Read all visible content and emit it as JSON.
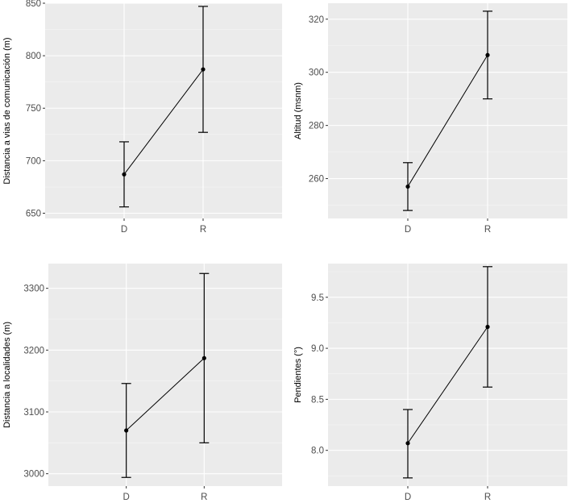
{
  "chart_data": [
    {
      "type": "line",
      "ylabel": "Distancia a vias de comunicación (m)",
      "xlabel": "",
      "categories": [
        "D",
        "R"
      ],
      "values": [
        687,
        787
      ],
      "error_low": [
        656,
        727
      ],
      "error_high": [
        718,
        847
      ],
      "ylim": [
        645,
        850
      ],
      "yticks": [
        650,
        700,
        750,
        800,
        850
      ]
    },
    {
      "type": "line",
      "ylabel": "Altitud (msnm)",
      "xlabel": "",
      "categories": [
        "D",
        "R"
      ],
      "values": [
        257,
        306.5
      ],
      "error_low": [
        248,
        290
      ],
      "error_high": [
        266,
        323
      ],
      "ylim": [
        245,
        326
      ],
      "yticks": [
        260,
        280,
        300,
        320
      ]
    },
    {
      "type": "line",
      "ylabel": "Distancia a localidades (m)",
      "xlabel": "",
      "categories": [
        "D",
        "R"
      ],
      "values": [
        3070,
        3187
      ],
      "error_low": [
        2994,
        3050
      ],
      "error_high": [
        3146,
        3324
      ],
      "ylim": [
        2980,
        3340
      ],
      "yticks": [
        3000,
        3100,
        3200,
        3300
      ]
    },
    {
      "type": "line",
      "ylabel": "Pendientes (°)",
      "xlabel": "",
      "categories": [
        "D",
        "R"
      ],
      "values": [
        8.07,
        9.21
      ],
      "error_low": [
        7.73,
        8.62
      ],
      "error_high": [
        8.4,
        9.8
      ],
      "ylim": [
        7.65,
        9.83
      ],
      "yticks": [
        8.0,
        8.5,
        9.0,
        9.5
      ]
    }
  ]
}
